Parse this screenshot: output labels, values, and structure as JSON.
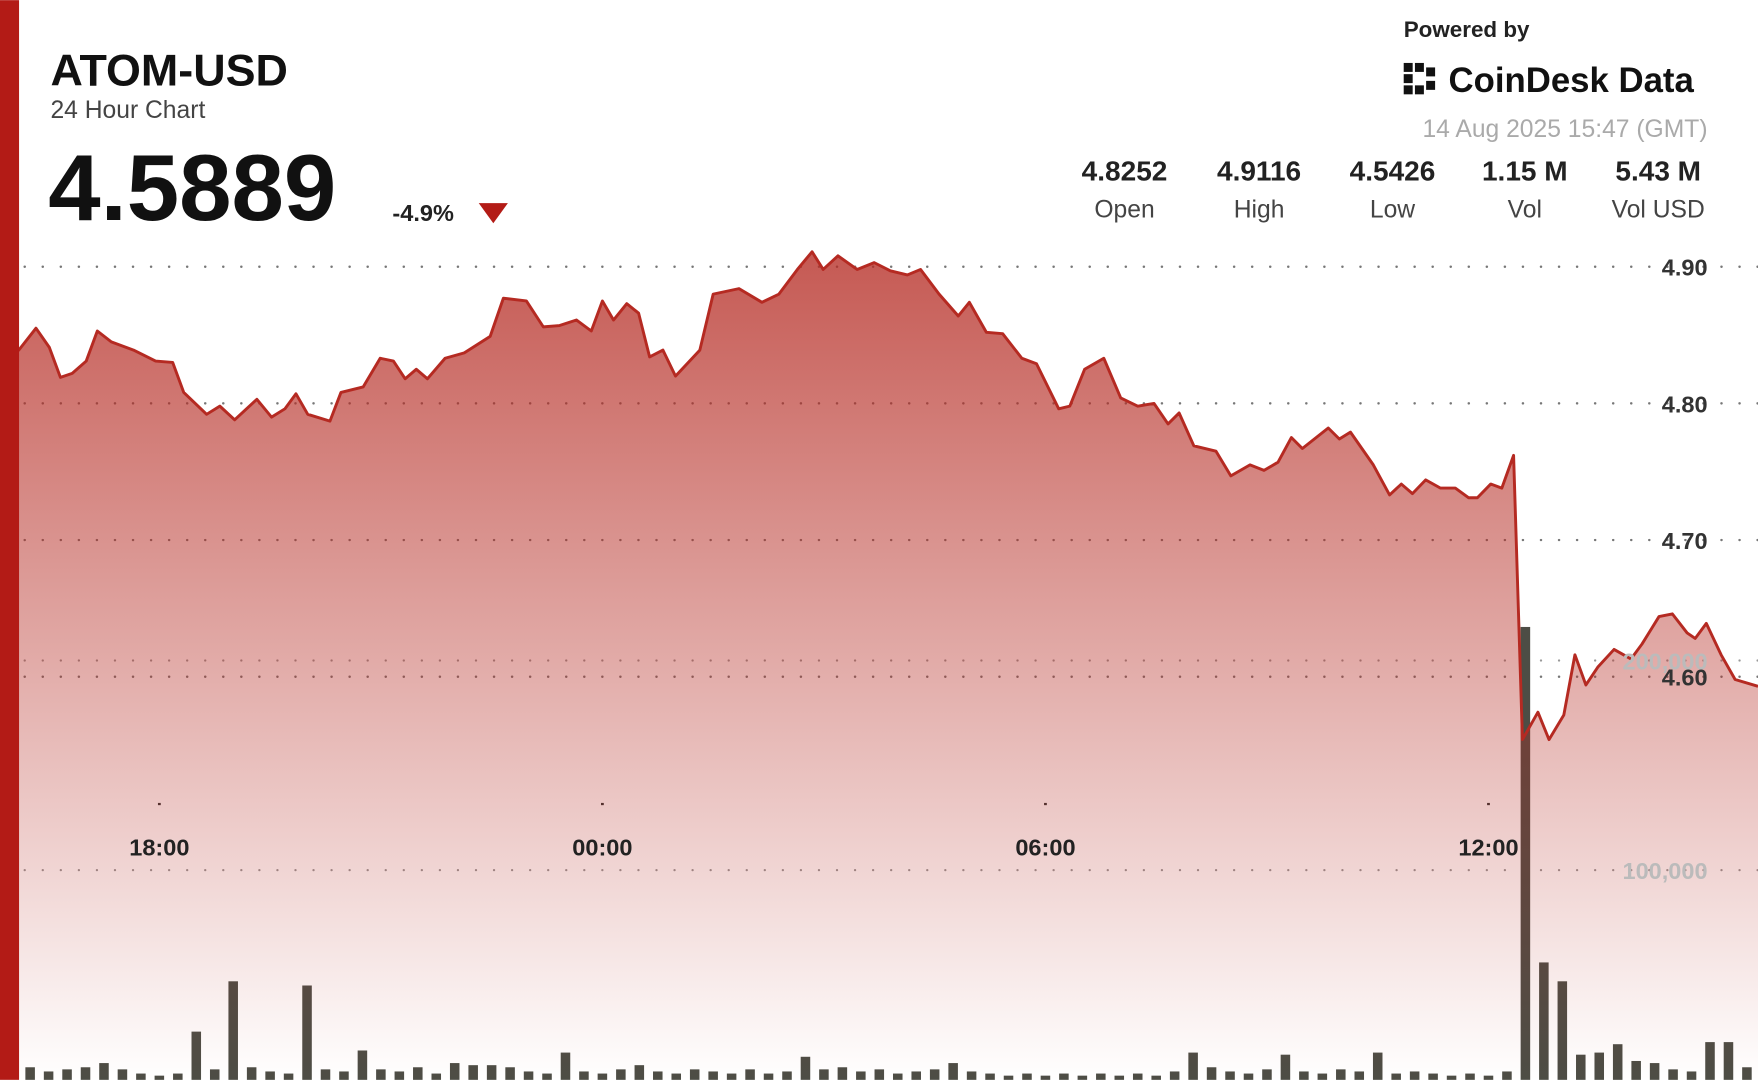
{
  "header": {
    "powered_by": "Powered by",
    "brand": "CoinDesk Data",
    "timestamp": "14 Aug 2025 15:47 (GMT)",
    "price": "4.5889",
    "change": "-4.9%",
    "stats": [
      {
        "value": "4.8252",
        "label": "Open"
      },
      {
        "value": "4.9116",
        "label": "High"
      },
      {
        "value": "4.5426",
        "label": "Low"
      },
      {
        "value": "1.15 M",
        "label": "Vol"
      },
      {
        "value": "5.43 M",
        "label": "Vol USD"
      }
    ]
  },
  "chart_data": {
    "type": "area",
    "title": "ATOM-USD",
    "subtitle": "24 Hour Chart",
    "color": "#b52a22",
    "grid": true,
    "xlim": [
      16.1,
      39.65
    ],
    "xticks": [
      {
        "value": 18,
        "label": "18:00"
      },
      {
        "value": 24,
        "label": "00:00"
      },
      {
        "value": 30,
        "label": "06:00"
      },
      {
        "value": 36,
        "label": "12:00"
      }
    ],
    "ylim": [
      4.305,
      4.931
    ],
    "yticks": [
      {
        "value": 4.9,
        "label": "4.90"
      },
      {
        "value": 4.8,
        "label": "4.80"
      },
      {
        "value": 4.7,
        "label": "4.70"
      },
      {
        "value": 4.6,
        "label": "4.60"
      }
    ],
    "y2lim": [
      0,
      408000
    ],
    "y2ticks": [
      {
        "value": 100000,
        "label": "100,000"
      },
      {
        "value": 200000,
        "label": "200,000"
      }
    ],
    "x": [
      16.09,
      16.33,
      16.51,
      16.66,
      16.82,
      17.01,
      17.16,
      17.35,
      17.65,
      17.95,
      18.18,
      18.33,
      18.64,
      18.82,
      19.02,
      19.32,
      19.52,
      19.7,
      19.85,
      20.01,
      20.31,
      20.46,
      20.76,
      20.99,
      21.17,
      21.33,
      21.48,
      21.63,
      21.87,
      22.13,
      22.48,
      22.66,
      22.97,
      23.2,
      23.42,
      23.65,
      23.85,
      24.0,
      24.15,
      24.33,
      24.49,
      24.64,
      24.82,
      24.99,
      25.32,
      25.5,
      25.85,
      26.16,
      26.39,
      26.64,
      26.84,
      26.99,
      27.19,
      27.45,
      27.68,
      27.9,
      28.13,
      28.31,
      28.56,
      28.82,
      28.97,
      29.2,
      29.42,
      29.68,
      29.88,
      30.18,
      30.33,
      30.53,
      30.79,
      31.02,
      31.25,
      31.47,
      31.66,
      31.81,
      32.01,
      32.31,
      32.51,
      32.77,
      32.96,
      33.15,
      33.33,
      33.48,
      33.83,
      33.98,
      34.13,
      34.44,
      34.66,
      34.82,
      34.97,
      35.15,
      35.35,
      35.55,
      35.73,
      35.85,
      36.03,
      36.18,
      36.34,
      36.46,
      36.67,
      36.82,
      37.02,
      37.17,
      37.32,
      37.48,
      37.7,
      37.93,
      38.08,
      38.31,
      38.49,
      38.69,
      38.8,
      38.95,
      39.15,
      39.34,
      39.65
    ],
    "values": [
      4.8385,
      4.855,
      4.841,
      4.819,
      4.822,
      4.831,
      4.853,
      4.845,
      4.839,
      4.831,
      4.83,
      4.808,
      4.792,
      4.798,
      4.788,
      4.803,
      4.79,
      4.796,
      4.807,
      4.792,
      4.787,
      4.808,
      4.812,
      4.833,
      4.831,
      4.818,
      4.825,
      4.818,
      4.833,
      4.837,
      4.849,
      4.877,
      4.875,
      4.856,
      4.857,
      4.861,
      4.853,
      4.875,
      4.861,
      4.873,
      4.866,
      4.834,
      4.839,
      4.82,
      4.839,
      4.88,
      4.884,
      4.874,
      4.88,
      4.898,
      4.911,
      4.898,
      4.908,
      4.898,
      4.903,
      4.897,
      4.894,
      4.898,
      4.88,
      4.864,
      4.874,
      4.852,
      4.851,
      4.833,
      4.829,
      4.796,
      4.798,
      4.825,
      4.833,
      4.804,
      4.798,
      4.8,
      4.785,
      4.793,
      4.769,
      4.765,
      4.747,
      4.755,
      4.751,
      4.757,
      4.775,
      4.767,
      4.782,
      4.774,
      4.779,
      4.755,
      4.733,
      4.741,
      4.734,
      4.744,
      4.738,
      4.738,
      4.731,
      4.731,
      4.741,
      4.738,
      4.762,
      4.554,
      4.574,
      4.554,
      4.572,
      4.616,
      4.594,
      4.607,
      4.62,
      4.613,
      4.624,
      4.644,
      4.646,
      4.632,
      4.628,
      4.639,
      4.616,
      4.598,
      4.593
    ],
    "volume": {
      "axis": "y2",
      "color": "#4d4d45",
      "x": [
        16.25,
        16.5,
        16.75,
        17,
        17.25,
        17.5,
        17.75,
        18,
        18.25,
        18.5,
        18.75,
        19,
        19.25,
        19.5,
        19.75,
        20,
        20.25,
        20.5,
        20.75,
        21,
        21.25,
        21.5,
        21.75,
        22,
        22.25,
        22.5,
        22.75,
        23,
        23.25,
        23.5,
        23.75,
        24,
        24.25,
        24.5,
        24.75,
        25,
        25.25,
        25.5,
        25.75,
        26,
        26.25,
        26.5,
        26.75,
        27,
        27.25,
        27.5,
        27.75,
        28,
        28.25,
        28.5,
        28.75,
        29,
        29.25,
        29.5,
        29.75,
        30,
        30.25,
        30.5,
        30.75,
        31,
        31.25,
        31.5,
        31.75,
        32,
        32.25,
        32.5,
        32.75,
        33,
        33.25,
        33.5,
        33.75,
        34,
        34.25,
        34.5,
        34.75,
        35,
        35.25,
        35.5,
        35.75,
        36,
        36.25,
        36.5,
        36.75,
        37,
        37.25,
        37.5,
        37.75,
        38,
        38.25,
        38.5,
        38.75,
        39,
        39.25,
        39.5
      ],
      "values": [
        6000,
        4000,
        5000,
        6000,
        8000,
        5000,
        3000,
        2000,
        3000,
        23000,
        5000,
        47000,
        6000,
        4000,
        3000,
        45000,
        5000,
        4000,
        14000,
        5000,
        4000,
        6000,
        3000,
        8000,
        7000,
        7000,
        6000,
        4000,
        3000,
        13000,
        4000,
        3000,
        5000,
        7000,
        4000,
        3000,
        5000,
        4000,
        3000,
        5000,
        3000,
        4000,
        11000,
        5000,
        6000,
        4000,
        5000,
        3000,
        4000,
        5000,
        8000,
        4000,
        3000,
        2000,
        3000,
        2000,
        3000,
        2000,
        3000,
        2000,
        3000,
        2000,
        4000,
        13000,
        6000,
        4000,
        3000,
        5000,
        12000,
        4000,
        3000,
        5000,
        4000,
        13000,
        3000,
        4000,
        3000,
        2000,
        3000,
        2000,
        4000,
        216000,
        56000,
        47000,
        12000,
        13000,
        17000,
        9000,
        8000,
        5000,
        4000,
        18000,
        18000,
        6000
      ]
    }
  }
}
